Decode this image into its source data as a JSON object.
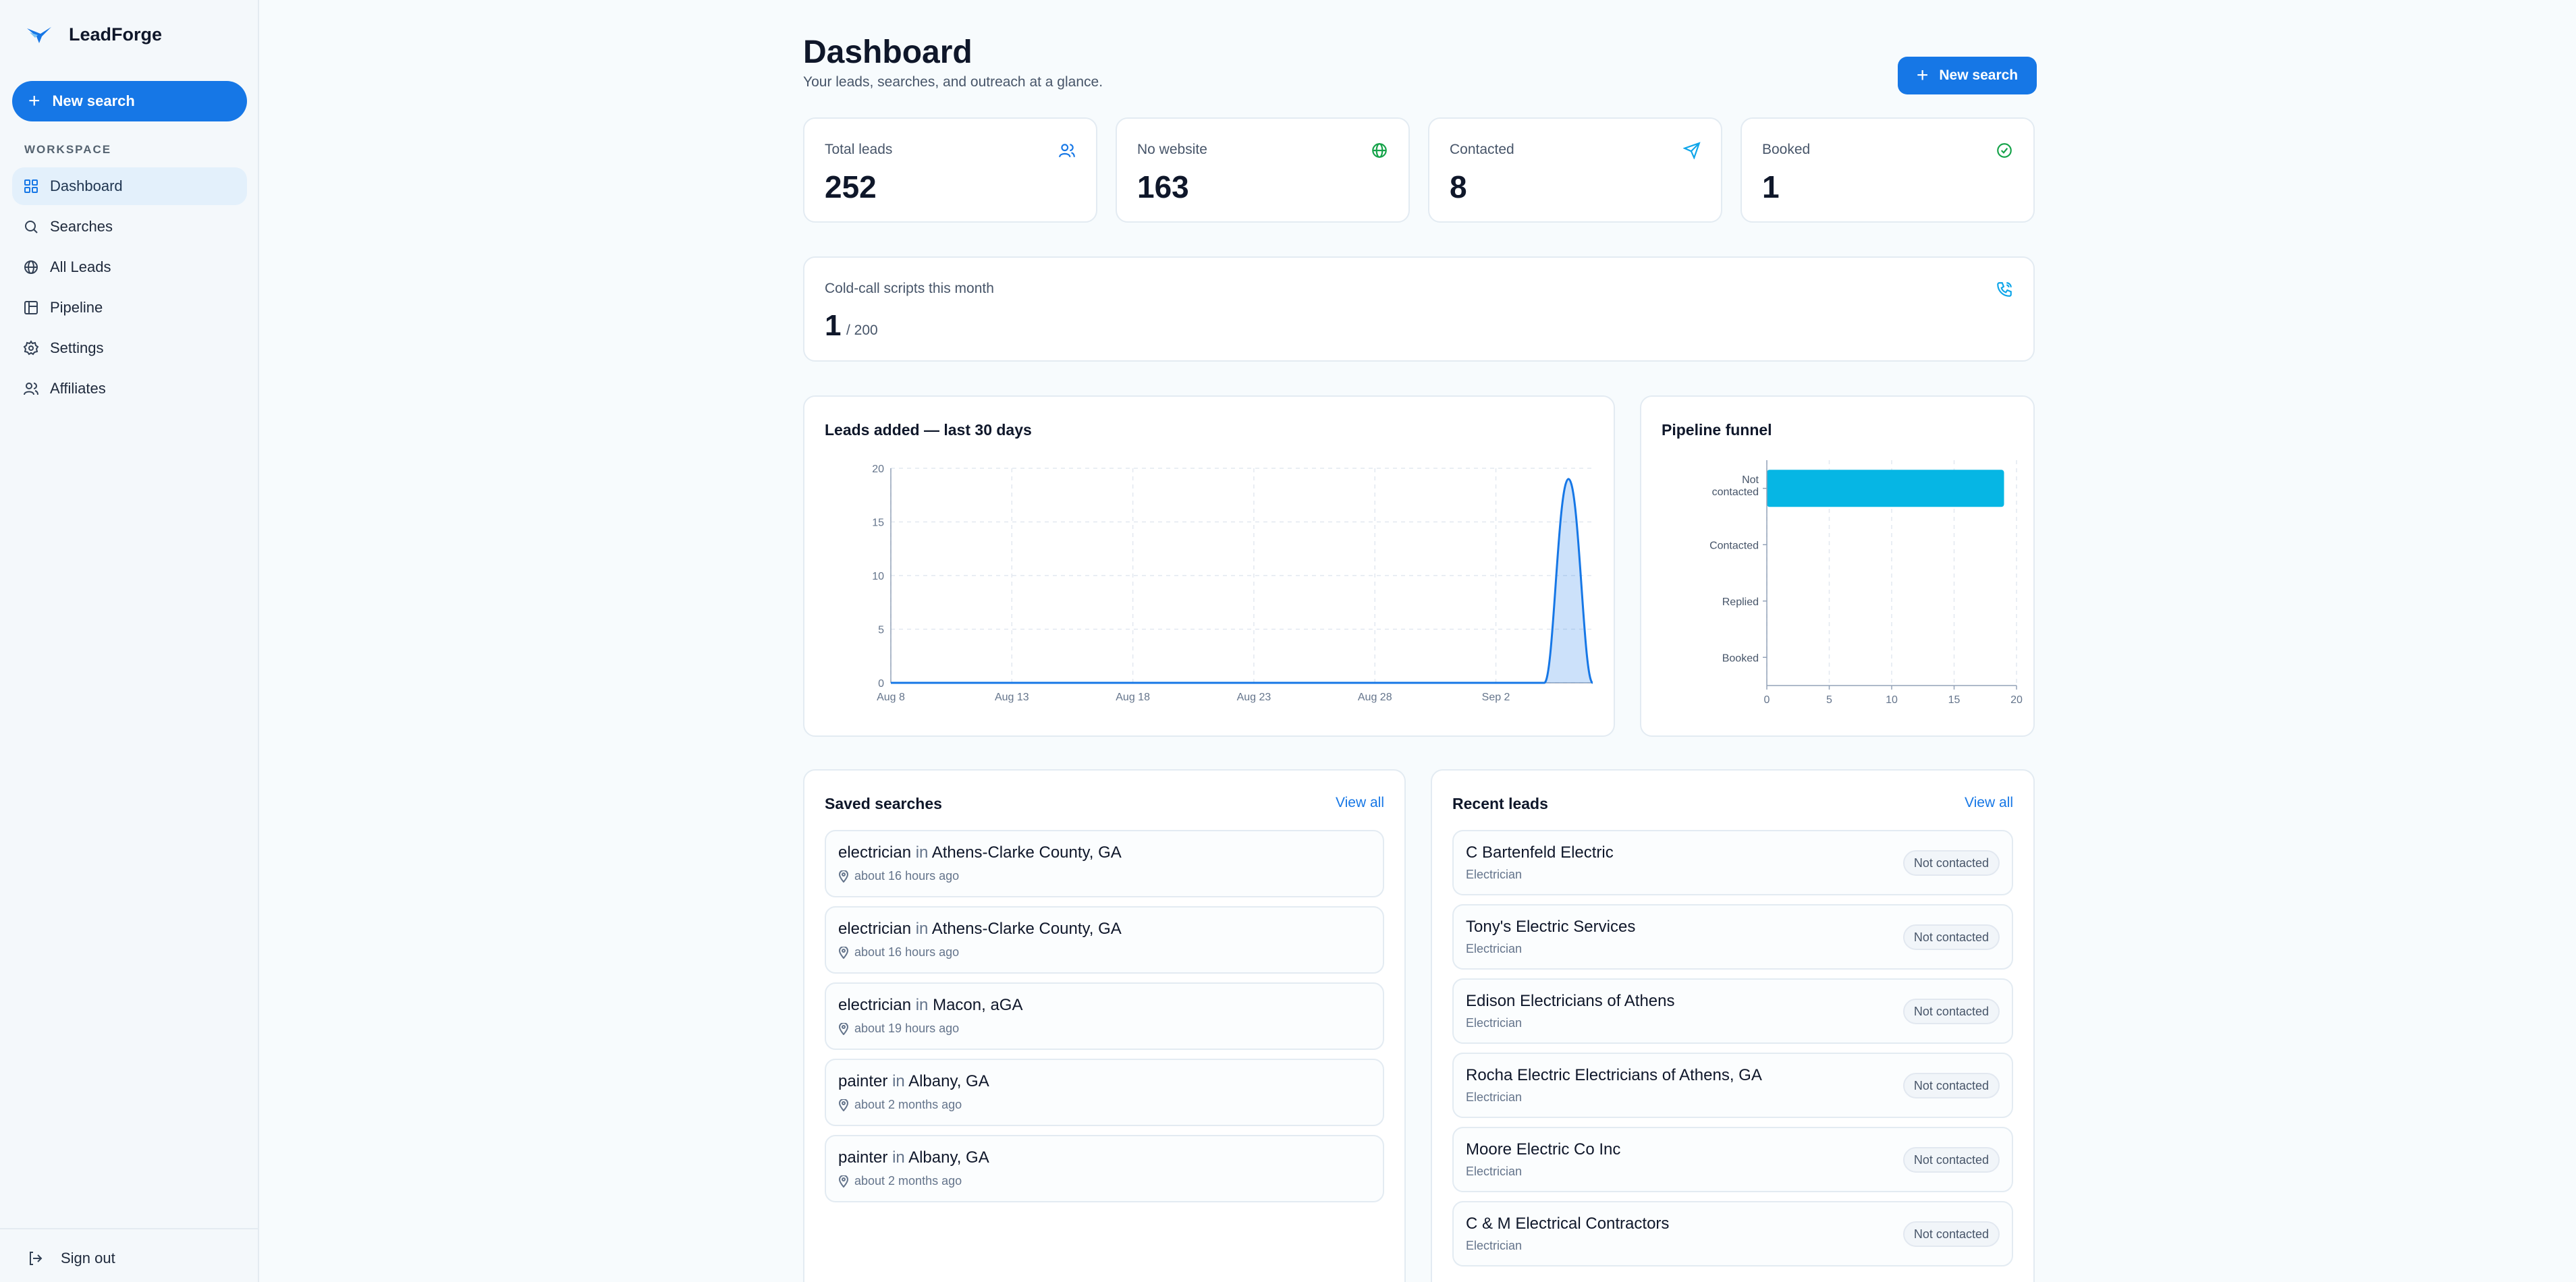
{
  "app": {
    "name": "LeadForge"
  },
  "sidebar": {
    "new_search_label": "New search",
    "section_label": "WORKSPACE",
    "items": [
      {
        "label": "Dashboard",
        "icon": "grid-icon",
        "active": true
      },
      {
        "label": "Searches",
        "icon": "search-icon"
      },
      {
        "label": "All Leads",
        "icon": "globe-icon"
      },
      {
        "label": "Pipeline",
        "icon": "kanban-icon"
      },
      {
        "label": "Settings",
        "icon": "gear-icon"
      },
      {
        "label": "Affiliates",
        "icon": "users-icon"
      }
    ],
    "sign_out_label": "Sign out"
  },
  "header": {
    "title": "Dashboard",
    "subtitle": "Your leads, searches, and outreach at a glance.",
    "new_search_label": "New search"
  },
  "stats": [
    {
      "label": "Total leads",
      "value": "252",
      "icon": "users-icon",
      "color": "#1677e6"
    },
    {
      "label": "No website",
      "value": "163",
      "icon": "globe-icon",
      "color": "#16a34a"
    },
    {
      "label": "Contacted",
      "value": "8",
      "icon": "send-icon",
      "color": "#0ea5e9"
    },
    {
      "label": "Booked",
      "value": "1",
      "icon": "check-circle-icon",
      "color": "#16a34a"
    }
  ],
  "scripts": {
    "label": "Cold-call scripts this month",
    "value": "1",
    "total": "/ 200",
    "icon": "phone-icon"
  },
  "leads_chart": {
    "title": "Leads added — last 30 days",
    "chart_data": {
      "type": "area",
      "x_ticks": [
        "Aug 8",
        "Aug 13",
        "Aug 18",
        "Aug 23",
        "Aug 28",
        "Sep 2"
      ],
      "y_ticks": [
        "0",
        "5",
        "10",
        "15",
        "20"
      ],
      "ylim": [
        0,
        20
      ],
      "x_range": [
        0,
        29
      ],
      "tick_positions": [
        0,
        5,
        10,
        15,
        20,
        25
      ],
      "x": [
        0,
        27,
        28,
        29
      ],
      "values": [
        0,
        0,
        19,
        0
      ],
      "color": "#1677e6"
    }
  },
  "funnel_chart": {
    "title": "Pipeline funnel",
    "chart_data": {
      "type": "bar",
      "orientation": "horizontal",
      "categories": [
        "Not contacted",
        "Contacted",
        "Replied",
        "Booked"
      ],
      "values": [
        19,
        0,
        0,
        0
      ],
      "x_ticks": [
        "0",
        "5",
        "10",
        "15",
        "20"
      ],
      "xlim": [
        0,
        20
      ],
      "color": "#06b6e4"
    }
  },
  "saved_searches": {
    "title": "Saved searches",
    "view_all": "View all",
    "connector": "in",
    "items": [
      {
        "term": "electrician",
        "location": "Athens-Clarke County, GA",
        "time": "about 16 hours ago"
      },
      {
        "term": "electrician",
        "location": "Athens-Clarke County, GA",
        "time": "about 16 hours ago"
      },
      {
        "term": "electrician",
        "location": "Macon, aGA",
        "time": "about 19 hours ago"
      },
      {
        "term": "painter",
        "location": "Albany, GA",
        "time": "about 2 months ago"
      },
      {
        "term": "painter",
        "location": "Albany, GA",
        "time": "about 2 months ago"
      }
    ]
  },
  "recent_leads": {
    "title": "Recent leads",
    "view_all": "View all",
    "items": [
      {
        "name": "C Bartenfeld Electric",
        "category": "Electrician",
        "status": "Not contacted"
      },
      {
        "name": "Tony's Electric Services",
        "category": "Electrician",
        "status": "Not contacted"
      },
      {
        "name": "Edison Electricians of Athens",
        "category": "Electrician",
        "status": "Not contacted"
      },
      {
        "name": "Rocha Electric Electricians of Athens, GA",
        "category": "Electrician",
        "status": "Not contacted"
      },
      {
        "name": "Moore Electric Co Inc",
        "category": "Electrician",
        "status": "Not contacted"
      },
      {
        "name": "C & M Electrical Contractors",
        "category": "Electrician",
        "status": "Not contacted"
      }
    ]
  }
}
